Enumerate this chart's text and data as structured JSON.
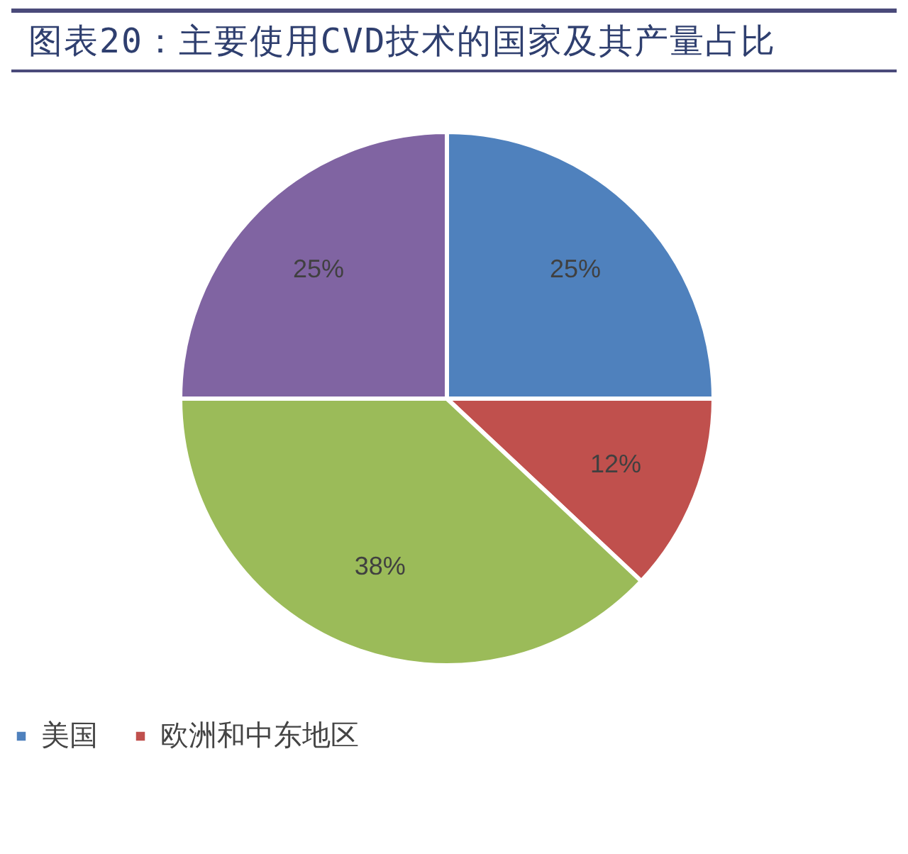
{
  "chart_data": {
    "type": "pie",
    "title": "图表20：主要使用CVD技术的国家及其产量占比",
    "categories": [
      "美国",
      "欧洲和中东地区",
      null,
      null
    ],
    "values": [
      25,
      12,
      38,
      25
    ],
    "colors": [
      "#4f81bd",
      "#c0504d",
      "#9bbb59",
      "#8064a2"
    ],
    "value_labels": [
      "25%",
      "12%",
      "38%",
      "25%"
    ],
    "legend": "bottom"
  }
}
